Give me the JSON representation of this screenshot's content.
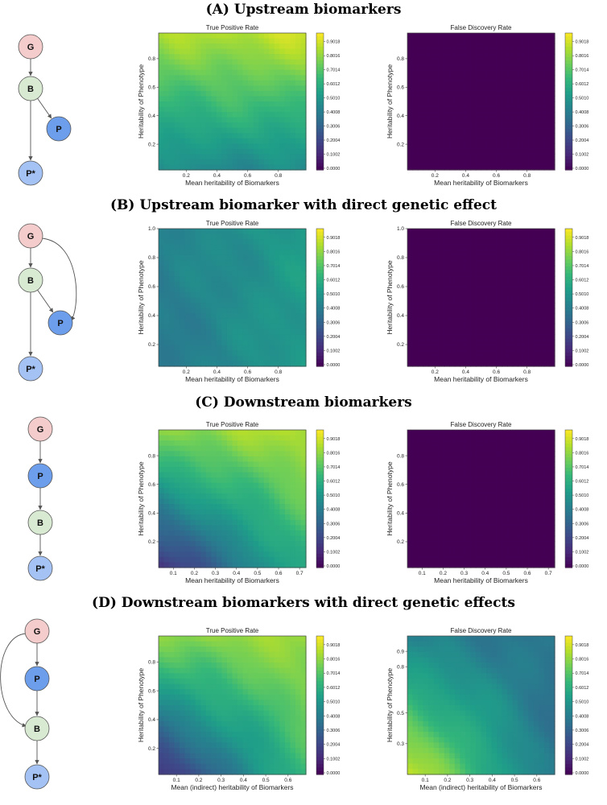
{
  "sections": [
    {
      "title": "(A) Upstream biomarkers"
    },
    {
      "title": "(B) Upstream biomarker with direct genetic effect"
    },
    {
      "title": "(C) Downstream biomarkers"
    },
    {
      "title": "(D) Downstream biomarkers with direct genetic effects"
    }
  ],
  "diagrams": [
    {
      "nodes": [
        {
          "id": "G",
          "label": "G"
        },
        {
          "id": "B",
          "label": "B"
        },
        {
          "id": "P",
          "label": "P"
        },
        {
          "id": "Ps",
          "label": "P*"
        }
      ],
      "edges": [
        [
          "G",
          "B"
        ],
        [
          "B",
          "P"
        ],
        [
          "B",
          "Ps"
        ]
      ]
    },
    {
      "nodes": [
        {
          "id": "G",
          "label": "G"
        },
        {
          "id": "B",
          "label": "B"
        },
        {
          "id": "P",
          "label": "P"
        },
        {
          "id": "Ps",
          "label": "P*"
        }
      ],
      "edges": [
        [
          "G",
          "B"
        ],
        [
          "B",
          "P"
        ],
        [
          "B",
          "Ps"
        ],
        [
          "G",
          "P"
        ]
      ]
    },
    {
      "nodes": [
        {
          "id": "G",
          "label": "G"
        },
        {
          "id": "P",
          "label": "P"
        },
        {
          "id": "B",
          "label": "B"
        },
        {
          "id": "Ps",
          "label": "P*"
        }
      ],
      "edges": [
        [
          "G",
          "P"
        ],
        [
          "P",
          "B"
        ],
        [
          "B",
          "Ps"
        ]
      ]
    },
    {
      "nodes": [
        {
          "id": "G",
          "label": "G"
        },
        {
          "id": "P",
          "label": "P"
        },
        {
          "id": "B",
          "label": "B"
        },
        {
          "id": "Ps",
          "label": "P*"
        }
      ],
      "edges": [
        [
          "G",
          "P"
        ],
        [
          "P",
          "B"
        ],
        [
          "B",
          "Ps"
        ],
        [
          "G",
          "B"
        ]
      ]
    }
  ],
  "chart_data": [
    {
      "type": "heatmap",
      "title": "True Positive Rate",
      "xlabel": "Mean heritability of Biomarkers",
      "ylabel": "Heritability of Phenotype",
      "xticks": [
        "0.2",
        "0.4",
        "0.6",
        "0.8"
      ],
      "yticks": [
        "0.2",
        "0.4",
        "0.6",
        "0.8"
      ],
      "xlim": [
        0.02,
        0.98
      ],
      "ylim": [
        0.02,
        0.98
      ],
      "colorbar_ticks": [
        "0.0000",
        "0.1002",
        "0.2004",
        "0.3006",
        "0.4008",
        "0.5010",
        "0.6012",
        "0.7014",
        "0.8016",
        "0.9018"
      ],
      "corner_values": {
        "bottom_left": 0.45,
        "bottom_right": 0.45,
        "top_left": 0.82,
        "top_right": 0.88
      }
    },
    {
      "type": "heatmap",
      "title": "False Discovery Rate",
      "xlabel": "Mean heritability of Biomarkers",
      "ylabel": "Heritability of Phenotype",
      "xticks": [
        "0.2",
        "0.4",
        "0.6",
        "0.8"
      ],
      "yticks": [
        "0.2",
        "0.4",
        "0.6",
        "0.8"
      ],
      "xlim": [
        0.02,
        0.98
      ],
      "ylim": [
        0.02,
        0.98
      ],
      "colorbar_ticks": [
        "0.0000",
        "0.1002",
        "0.2004",
        "0.3006",
        "0.4008",
        "0.5010",
        "0.6012",
        "0.7014",
        "0.8016",
        "0.9018"
      ],
      "corner_values": {
        "bottom_left": 0.0,
        "bottom_right": 0.0,
        "top_left": 0.0,
        "top_right": 0.0
      }
    },
    {
      "type": "heatmap",
      "title": "True Positive Rate",
      "xlabel": "Mean heritability of Biomarkers",
      "ylabel": "Heritability of Phenotype",
      "xticks": [
        "0.2",
        "0.4",
        "0.6",
        "0.8"
      ],
      "yticks": [
        "0.2",
        "0.4",
        "0.6",
        "0.8",
        "1.0"
      ],
      "xlim": [
        0.02,
        0.98
      ],
      "ylim": [
        0.05,
        1.0
      ],
      "colorbar_ticks": [
        "0.0000",
        "0.1002",
        "0.2004",
        "0.3006",
        "0.4008",
        "0.5010",
        "0.6012",
        "0.7014",
        "0.8016",
        "0.9018"
      ],
      "corner_values": {
        "bottom_left": 0.38,
        "bottom_right": 0.52,
        "top_left": 0.42,
        "top_right": 0.52
      }
    },
    {
      "type": "heatmap",
      "title": "False Discovery Rate",
      "xlabel": "Mean heritability of Biomarkers",
      "ylabel": "Heritability of Phenotype",
      "xticks": [
        "0.2",
        "0.4",
        "0.6",
        "0.8"
      ],
      "yticks": [
        "0.2",
        "0.4",
        "0.6",
        "0.8",
        "1.0"
      ],
      "xlim": [
        0.02,
        0.98
      ],
      "ylim": [
        0.05,
        1.0
      ],
      "colorbar_ticks": [
        "0.0000",
        "0.1002",
        "0.2004",
        "0.3006",
        "0.4008",
        "0.5010",
        "0.6012",
        "0.7014",
        "0.8016",
        "0.9018"
      ],
      "corner_values": {
        "bottom_left": 0.0,
        "bottom_right": 0.0,
        "top_left": 0.0,
        "top_right": 0.0
      }
    },
    {
      "type": "heatmap",
      "title": "True Positive Rate",
      "xlabel": "Mean heritability of Biomarkers",
      "ylabel": "Heritability of Phenotype",
      "xticks": [
        "0.1",
        "0.2",
        "0.3",
        "0.4",
        "0.5",
        "0.6",
        "0.7"
      ],
      "yticks": [
        "0.2",
        "0.4",
        "0.6",
        "0.8"
      ],
      "xlim": [
        0.03,
        0.73
      ],
      "ylim": [
        0.02,
        0.98
      ],
      "colorbar_ticks": [
        "0.0000",
        "0.1002",
        "0.2004",
        "0.3006",
        "0.4008",
        "0.5010",
        "0.6012",
        "0.7014",
        "0.8016",
        "0.9018"
      ],
      "corner_values": {
        "bottom_left": 0.12,
        "bottom_right": 0.6,
        "top_left": 0.78,
        "top_right": 0.85
      }
    },
    {
      "type": "heatmap",
      "title": "False Discovery Rate",
      "xlabel": "Mean heritability of Biomarkers",
      "ylabel": "Heritability of Phenotype",
      "xticks": [
        "0.1",
        "0.2",
        "0.3",
        "0.4",
        "0.5",
        "0.6",
        "0.7"
      ],
      "yticks": [
        "0.2",
        "0.4",
        "0.6",
        "0.8"
      ],
      "xlim": [
        0.03,
        0.73
      ],
      "ylim": [
        0.02,
        0.98
      ],
      "colorbar_ticks": [
        "0.0000",
        "0.1002",
        "0.2004",
        "0.3006",
        "0.4008",
        "0.5010",
        "0.6012",
        "0.7014",
        "0.8016",
        "0.9018"
      ],
      "corner_values": {
        "bottom_left": 0.0,
        "bottom_right": 0.0,
        "top_left": 0.0,
        "top_right": 0.0
      }
    },
    {
      "type": "heatmap",
      "title": "True Positive Rate",
      "xlabel": "Mean (indirect) heritability of Biomarkers",
      "ylabel": "Heritability of Phenotype",
      "xticks": [
        "0.1",
        "0.2",
        "0.3",
        "0.4",
        "0.5",
        "0.6"
      ],
      "yticks": [
        "0.2",
        "0.4",
        "0.6",
        "0.8"
      ],
      "xlim": [
        0.02,
        0.68
      ],
      "ylim": [
        0.02,
        0.98
      ],
      "colorbar_ticks": [
        "0.0000",
        "0.1002",
        "0.2004",
        "0.3006",
        "0.4008",
        "0.5010",
        "0.6012",
        "0.7014",
        "0.8016",
        "0.9018"
      ],
      "corner_values": {
        "bottom_left": 0.12,
        "bottom_right": 0.65,
        "top_left": 0.78,
        "top_right": 0.82
      }
    },
    {
      "type": "heatmap",
      "title": "False Discovery Rate",
      "xlabel": "Mean (indirect) heritability of Biomarkers",
      "ylabel": "Heritability of Phenotype",
      "xticks": [
        "0.1",
        "0.2",
        "0.3",
        "0.4",
        "0.5",
        "0.6"
      ],
      "yticks": [
        "0.3",
        "0.5",
        "0.8",
        "0.9"
      ],
      "xlim": [
        0.02,
        0.68
      ],
      "ylim": [
        0.1,
        1.0
      ],
      "colorbar_ticks": [
        "0.0000",
        "0.1002",
        "0.2004",
        "0.3006",
        "0.4008",
        "0.5010",
        "0.6012",
        "0.7014",
        "0.8016",
        "0.9018"
      ],
      "corner_values": {
        "bottom_left": 0.88,
        "bottom_right": 0.36,
        "top_left": 0.42,
        "top_right": 0.36
      }
    }
  ],
  "colors": {
    "node_G": "#f5cccc",
    "node_B": "#d9ead3",
    "node_P": "#6d9eeb",
    "node_Pstar": "#a4c2f4",
    "node_stroke": "#555555",
    "edge": "#555555",
    "viridis": [
      "#440154",
      "#482878",
      "#3e4989",
      "#31688e",
      "#26828e",
      "#1f9e89",
      "#35b779",
      "#6ece58",
      "#b5de2b",
      "#fde725"
    ]
  }
}
